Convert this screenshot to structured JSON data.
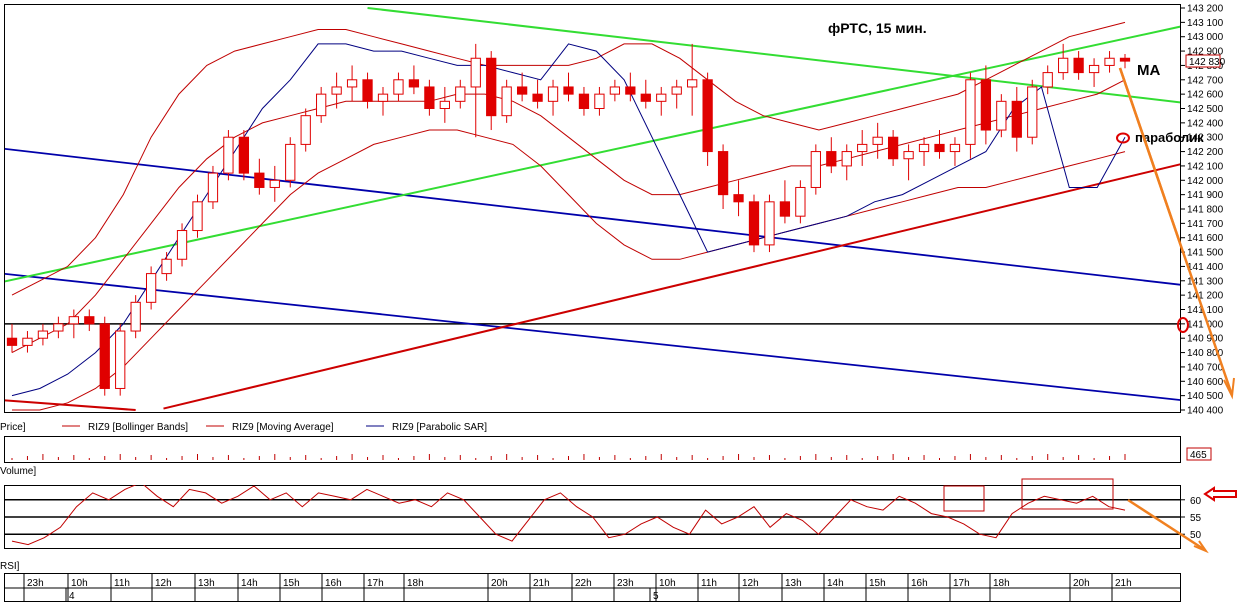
{
  "chart_data": [
    {
      "type": "candlestick",
      "title": "фРТС,  15 мин.",
      "ylim": [
        140400,
        143200
      ],
      "y_ticks": [
        140400,
        140500,
        140600,
        140700,
        140800,
        140900,
        141000,
        141100,
        141200,
        141300,
        141400,
        141500,
        141600,
        141700,
        141800,
        141900,
        142000,
        142100,
        142200,
        142300,
        142400,
        142500,
        142600,
        142700,
        142800,
        142900,
        143000,
        143100,
        143200
      ],
      "last_price": "142 830",
      "level_line": 141000,
      "series": [
        {
          "name": "RIZ9 [Bollinger Bands]",
          "color": "#c00000"
        },
        {
          "name": "RIZ9 [Moving Average]",
          "color": "#c00000"
        },
        {
          "name": "RIZ9 [Parabolic SAR]",
          "color": "#000080"
        }
      ],
      "series_prefix": "Price]",
      "annotations": {
        "ma": "MA",
        "parabolic": "параболик"
      },
      "candles": [
        [
          140900,
          141000,
          140800,
          140850
        ],
        [
          140850,
          140950,
          140800,
          140900
        ],
        [
          140900,
          141000,
          140850,
          140950
        ],
        [
          140950,
          141050,
          140900,
          141000
        ],
        [
          141000,
          141100,
          140900,
          141050
        ],
        [
          141050,
          141100,
          140950,
          141000
        ],
        [
          141000,
          141050,
          140500,
          140550
        ],
        [
          140550,
          141000,
          140500,
          140950
        ],
        [
          140950,
          141200,
          140900,
          141150
        ],
        [
          141150,
          141400,
          141100,
          141350
        ],
        [
          141350,
          141500,
          141300,
          141450
        ],
        [
          141450,
          141700,
          141400,
          141650
        ],
        [
          141650,
          141900,
          141600,
          141850
        ],
        [
          141850,
          142100,
          141800,
          142050
        ],
        [
          142050,
          142350,
          142000,
          142300
        ],
        [
          142300,
          142350,
          142000,
          142050
        ],
        [
          142050,
          142150,
          141900,
          141950
        ],
        [
          141950,
          142100,
          141850,
          142000
        ],
        [
          142000,
          142300,
          141950,
          142250
        ],
        [
          142250,
          142500,
          142200,
          142450
        ],
        [
          142450,
          142650,
          142400,
          142600
        ],
        [
          142600,
          142750,
          142500,
          142650
        ],
        [
          142650,
          142800,
          142550,
          142700
        ],
        [
          142700,
          142750,
          142500,
          142550
        ],
        [
          142550,
          142650,
          142450,
          142600
        ],
        [
          142600,
          142750,
          142550,
          142700
        ],
        [
          142700,
          142800,
          142600,
          142650
        ],
        [
          142650,
          142700,
          142450,
          142500
        ],
        [
          142500,
          142650,
          142400,
          142550
        ],
        [
          142550,
          142700,
          142500,
          142650
        ],
        [
          142650,
          142950,
          142300,
          142850
        ],
        [
          142850,
          142900,
          142350,
          142450
        ],
        [
          142450,
          142700,
          142400,
          142650
        ],
        [
          142650,
          142750,
          142550,
          142600
        ],
        [
          142600,
          142700,
          142500,
          142550
        ],
        [
          142550,
          142700,
          142450,
          142650
        ],
        [
          142650,
          142750,
          142550,
          142600
        ],
        [
          142600,
          142650,
          142450,
          142500
        ],
        [
          142500,
          142650,
          142450,
          142600
        ],
        [
          142600,
          142700,
          142550,
          142650
        ],
        [
          142650,
          142750,
          142550,
          142600
        ],
        [
          142600,
          142700,
          142500,
          142550
        ],
        [
          142550,
          142650,
          142450,
          142600
        ],
        [
          142600,
          142700,
          142500,
          142650
        ],
        [
          142650,
          142950,
          142450,
          142700
        ],
        [
          142700,
          142750,
          142100,
          142200
        ],
        [
          142200,
          142250,
          141800,
          141900
        ],
        [
          141900,
          142000,
          141750,
          141850
        ],
        [
          141850,
          141900,
          141500,
          141550
        ],
        [
          141550,
          141900,
          141500,
          141850
        ],
        [
          141850,
          142000,
          141700,
          141750
        ],
        [
          141750,
          142000,
          141700,
          141950
        ],
        [
          141950,
          142250,
          141900,
          142200
        ],
        [
          142200,
          142300,
          142050,
          142100
        ],
        [
          142100,
          142250,
          142000,
          142200
        ],
        [
          142200,
          142350,
          142100,
          142250
        ],
        [
          142250,
          142400,
          142150,
          142300
        ],
        [
          142300,
          142350,
          142100,
          142150
        ],
        [
          142150,
          142250,
          142000,
          142200
        ],
        [
          142200,
          142300,
          142100,
          142250
        ],
        [
          142250,
          142350,
          142150,
          142200
        ],
        [
          142200,
          142300,
          142100,
          142250
        ],
        [
          142250,
          142750,
          142150,
          142700
        ],
        [
          142700,
          142800,
          142250,
          142350
        ],
        [
          142350,
          142600,
          142300,
          142550
        ],
        [
          142550,
          142650,
          142200,
          142300
        ],
        [
          142300,
          142700,
          142250,
          142650
        ],
        [
          142650,
          142800,
          142600,
          142750
        ],
        [
          142750,
          142950,
          142700,
          142850
        ],
        [
          142850,
          142900,
          142700,
          142750
        ],
        [
          142750,
          142850,
          142650,
          142800
        ],
        [
          142800,
          142900,
          142750,
          142850
        ],
        [
          142850,
          142880,
          142780,
          142830
        ]
      ],
      "bb_upper": [
        141200,
        141300,
        141400,
        141600,
        141900,
        142300,
        142600,
        142800,
        142900,
        142950,
        143000,
        143050,
        143050,
        143000,
        142950,
        142900,
        142850,
        142800,
        142800,
        142800,
        142800,
        142850,
        142950,
        142950,
        142850,
        142700,
        142550,
        142450,
        142400,
        142350,
        142400,
        142450,
        142500,
        142550,
        142600,
        142700,
        142800,
        142900,
        143000,
        143050,
        143100
      ],
      "bb_lower": [
        140400,
        140400,
        140450,
        140550,
        140700,
        140900,
        141100,
        141300,
        141500,
        141700,
        141900,
        142050,
        142150,
        142250,
        142300,
        142350,
        142350,
        142300,
        142250,
        142100,
        141900,
        141700,
        141550,
        141450,
        141450,
        141500,
        141550,
        141600,
        141650,
        141700,
        141750,
        141800,
        141850,
        141900,
        141950,
        141950,
        142000,
        142050,
        142100,
        142150,
        142200
      ],
      "ma": [
        140800,
        140900,
        141000,
        141200,
        141450,
        141700,
        141950,
        142150,
        142300,
        142400,
        142450,
        142500,
        142550,
        142550,
        142550,
        142550,
        142600,
        142600,
        142550,
        142450,
        142300,
        142150,
        142000,
        141900,
        141900,
        141950,
        142000,
        142050,
        142100,
        142100,
        142150,
        142200,
        142250,
        142300,
        142350,
        142400,
        142450,
        142500,
        142550,
        142600,
        142700
      ],
      "sar": [
        [
          0,
          140500
        ],
        [
          1,
          140550
        ],
        [
          2,
          140650
        ],
        [
          3,
          140800
        ],
        [
          4,
          141000
        ],
        [
          5,
          141300
        ],
        [
          6,
          141600
        ],
        [
          7,
          141900
        ],
        [
          8,
          142200
        ],
        [
          9,
          142500
        ],
        [
          10,
          142700
        ],
        [
          11,
          142950
        ],
        [
          12,
          142950
        ],
        [
          13,
          142900
        ],
        [
          14,
          142900
        ],
        [
          15,
          142850
        ],
        [
          16,
          142800
        ],
        [
          17,
          142800
        ],
        [
          18,
          142750
        ],
        [
          19,
          142700
        ],
        [
          20,
          142950
        ],
        [
          21,
          142900
        ],
        [
          22,
          142700
        ],
        [
          23,
          142300
        ],
        [
          24,
          141900
        ],
        [
          25,
          141500
        ],
        [
          26,
          141550
        ],
        [
          27,
          141600
        ],
        [
          28,
          141650
        ],
        [
          29,
          141700
        ],
        [
          30,
          141750
        ],
        [
          31,
          141850
        ],
        [
          32,
          141900
        ],
        [
          33,
          142000
        ],
        [
          34,
          142100
        ],
        [
          35,
          142200
        ],
        [
          36,
          142500
        ],
        [
          37,
          142650
        ],
        [
          38,
          141950
        ],
        [
          39,
          141950
        ],
        [
          40,
          142300
        ]
      ]
    },
    {
      "type": "bar",
      "label": "Volume]",
      "last_value": "465"
    },
    {
      "type": "line",
      "label": "RSI]",
      "y_ticks": [
        50,
        55,
        60
      ],
      "levels": [
        50,
        55,
        60
      ],
      "ylim": [
        46,
        64
      ],
      "values": [
        48,
        47,
        49,
        52,
        58,
        62,
        60,
        63,
        65,
        61,
        58,
        63,
        62,
        59,
        61,
        64,
        60,
        62,
        58,
        62,
        61,
        60,
        63,
        61,
        59,
        60,
        58,
        62,
        60,
        55,
        50,
        48,
        54,
        60,
        62,
        58,
        55,
        49,
        50,
        53,
        55,
        52,
        50,
        57,
        53,
        55,
        58,
        52,
        56,
        54,
        50,
        55,
        60,
        58,
        57,
        61,
        59,
        56,
        55,
        53,
        50,
        49,
        56,
        59,
        61,
        60,
        59,
        61,
        58,
        57
      ]
    }
  ],
  "x_axis": {
    "hours": [
      "23h",
      "10h",
      "11h",
      "12h",
      "13h",
      "14h",
      "15h",
      "16h",
      "17h",
      "18h",
      "20h",
      "21h",
      "22h",
      "23h",
      "10h",
      "11h",
      "12h",
      "13h",
      "14h",
      "15h",
      "16h",
      "17h",
      "18h",
      "20h",
      "21h"
    ],
    "days": [
      "4",
      "5"
    ]
  },
  "colors": {
    "candle_red": "#e00000",
    "bollinger": "#c00000",
    "ma": "#c00000",
    "sar": "#000080",
    "green_channel": "#33dd33",
    "blue_channel": "#0000aa",
    "red_trend": "#cc0000",
    "orange": "#f08020",
    "level": "#000000",
    "volume": "#c00000"
  }
}
